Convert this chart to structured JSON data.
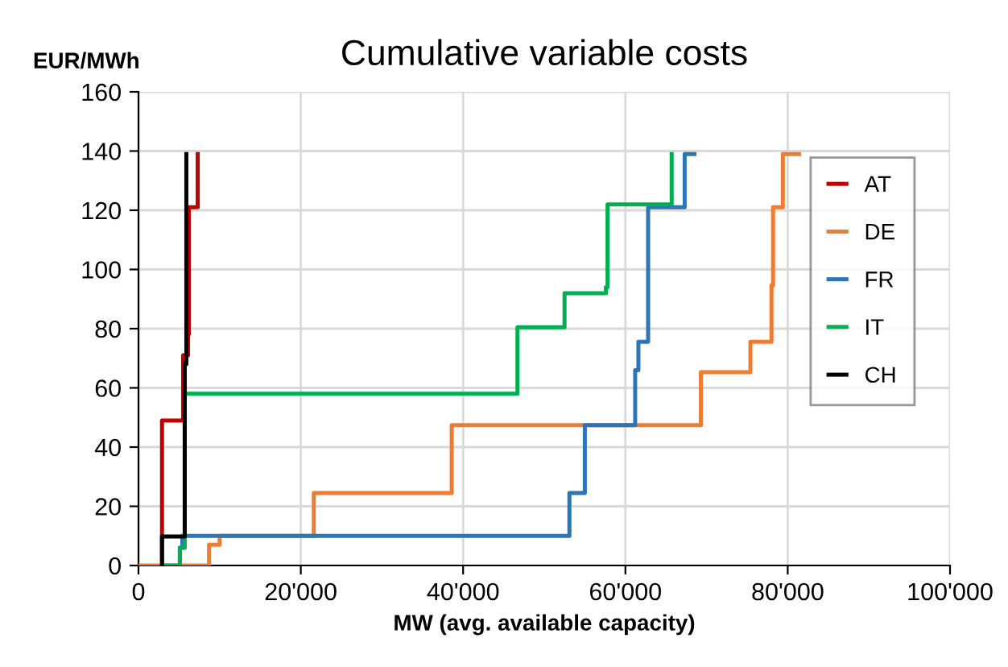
{
  "chart_data": {
    "type": "line",
    "title": "Cumulative variable costs",
    "xlabel": "MW (avg. available capacity)",
    "ylabel": "EUR/MWh",
    "xlim": [
      0,
      100000
    ],
    "ylim": [
      0,
      160
    ],
    "xticks": [
      {
        "value": 0,
        "label": "0"
      },
      {
        "value": 20000,
        "label": "20'000"
      },
      {
        "value": 40000,
        "label": "40'000"
      },
      {
        "value": 60000,
        "label": "60'000"
      },
      {
        "value": 80000,
        "label": "80'000"
      },
      {
        "value": 100000,
        "label": "100'000"
      }
    ],
    "yticks": [
      0,
      20,
      40,
      60,
      80,
      100,
      120,
      140,
      160
    ],
    "grid": true,
    "legend": "right",
    "marker": "none",
    "line_style": "solid",
    "series": [
      {
        "name": "AT",
        "color": "#c00000",
        "x": [
          2900,
          2900,
          5500,
          5500,
          6100,
          6100,
          6200,
          6200,
          7300,
          7300
        ],
        "values": [
          0,
          49,
          49,
          71,
          71,
          78,
          78,
          121,
          121,
          139
        ]
      },
      {
        "name": "DE",
        "color": "#ed7d31",
        "x": [
          0,
          8700,
          8700,
          10000,
          10000,
          21600,
          21600,
          38600,
          38600,
          69300,
          69300,
          75400,
          75400,
          78000,
          78000,
          78200,
          78200,
          79400,
          79400,
          81400
        ],
        "values": [
          0,
          0,
          7,
          7,
          10,
          10,
          24.5,
          24.5,
          47.4,
          47.4,
          65.3,
          65.3,
          75.6,
          75.6,
          94.7,
          94.7,
          121,
          121,
          139,
          139
        ]
      },
      {
        "name": "FR",
        "color": "#2e75b6",
        "x": [
          5100,
          5100,
          5400,
          5400,
          53100,
          53100,
          55000,
          55000,
          61200,
          61200,
          61600,
          61600,
          62800,
          62800,
          67300,
          67300,
          68500
        ],
        "values": [
          0,
          6,
          6,
          10,
          10,
          24.5,
          24.5,
          47.4,
          47.4,
          66,
          66,
          75.6,
          75.6,
          121,
          121,
          139,
          139
        ]
      },
      {
        "name": "IT",
        "color": "#00b050",
        "x": [
          3000,
          5100,
          5100,
          5700,
          5700,
          46700,
          46700,
          52500,
          52500,
          57600,
          57600,
          57800,
          57800,
          65700,
          65700
        ],
        "values": [
          0,
          0,
          6,
          6,
          58,
          58,
          80.5,
          80.5,
          92,
          92,
          94,
          94,
          122,
          122,
          139
        ]
      },
      {
        "name": "CH",
        "color": "#000000",
        "x": [
          2900,
          2900,
          5700,
          5700,
          5900,
          5900
        ],
        "values": [
          0,
          9.8,
          9.8,
          68,
          68,
          139
        ]
      }
    ]
  }
}
